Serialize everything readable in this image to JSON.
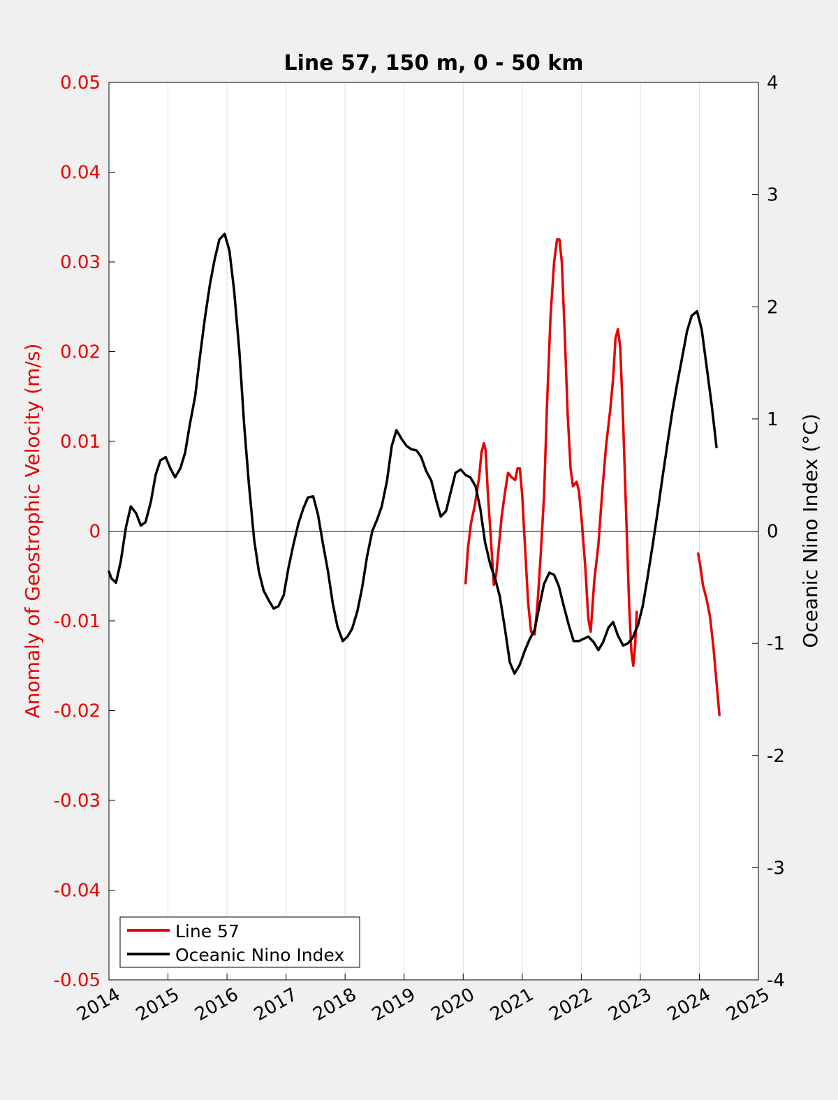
{
  "chart_data": {
    "type": "line",
    "title": "Line 57, 150 m, 0 - 50 km",
    "ylabel_left": "Anomaly of Geostrophic Velocity (m/s)",
    "ylabel_right": "Oceanic Nino Index (°C)",
    "xlim": [
      2014,
      2025
    ],
    "ylim_left": [
      -0.05,
      0.05
    ],
    "ylim_right": [
      -4,
      4
    ],
    "grid_x": true,
    "legend_position": "bottom-left",
    "xticks": [
      "2014",
      "2015",
      "2016",
      "2017",
      "2018",
      "2019",
      "2020",
      "2021",
      "2022",
      "2023",
      "2024",
      "2025"
    ],
    "yticks_left": [
      "0.05",
      "0.04",
      "0.03",
      "0.02",
      "0.01",
      "0",
      "-0.01",
      "-0.02",
      "-0.03",
      "-0.04",
      "-0.05"
    ],
    "yticks_right": [
      "4",
      "3",
      "2",
      "1",
      "0",
      "-1",
      "-2",
      "-3",
      "-4"
    ],
    "colors": {
      "line57": "#e60000",
      "oni": "#000000",
      "left_axis": "#e60000",
      "right_axis": "#000000"
    },
    "series": [
      {
        "name": "Line 57",
        "axis": "left",
        "segments": [
          [
            [
              2020.04,
              -0.0058
            ],
            [
              2020.08,
              -0.002
            ],
            [
              2020.13,
              0.0008
            ],
            [
              2020.2,
              0.003
            ],
            [
              2020.27,
              0.006
            ],
            [
              2020.31,
              0.0088
            ],
            [
              2020.35,
              0.0098
            ],
            [
              2020.38,
              0.009
            ],
            [
              2020.42,
              0.004
            ],
            [
              2020.48,
              -0.002
            ],
            [
              2020.52,
              -0.006
            ],
            [
              2020.56,
              -0.0048
            ],
            [
              2020.6,
              -0.002
            ],
            [
              2020.65,
              0.0015
            ],
            [
              2020.7,
              0.004
            ],
            [
              2020.76,
              0.0065
            ],
            [
              2020.82,
              0.006
            ],
            [
              2020.88,
              0.0057
            ],
            [
              2020.92,
              0.007
            ],
            [
              2020.96,
              0.007
            ],
            [
              2021.0,
              0.004
            ],
            [
              2021.05,
              -0.002
            ],
            [
              2021.1,
              -0.008
            ],
            [
              2021.15,
              -0.0112
            ],
            [
              2021.21,
              -0.0115
            ],
            [
              2021.26,
              -0.008
            ],
            [
              2021.31,
              -0.003
            ],
            [
              2021.37,
              0.004
            ],
            [
              2021.42,
              0.014
            ],
            [
              2021.48,
              0.024
            ],
            [
              2021.54,
              0.03
            ],
            [
              2021.59,
              0.0325
            ],
            [
              2021.63,
              0.0325
            ],
            [
              2021.67,
              0.03
            ],
            [
              2021.72,
              0.022
            ],
            [
              2021.77,
              0.013
            ],
            [
              2021.82,
              0.007
            ],
            [
              2021.86,
              0.005
            ],
            [
              2021.92,
              0.0055
            ],
            [
              2021.96,
              0.0045
            ],
            [
              2022.01,
              0.001
            ],
            [
              2022.07,
              -0.0042
            ],
            [
              2022.12,
              -0.0098
            ],
            [
              2022.16,
              -0.0112
            ],
            [
              2022.22,
              -0.0055
            ],
            [
              2022.29,
              -0.0015
            ],
            [
              2022.35,
              0.004
            ],
            [
              2022.42,
              0.0095
            ],
            [
              2022.49,
              0.0135
            ],
            [
              2022.54,
              0.017
            ],
            [
              2022.58,
              0.0215
            ],
            [
              2022.62,
              0.0225
            ],
            [
              2022.66,
              0.0205
            ],
            [
              2022.71,
              0.012
            ],
            [
              2022.76,
              0.002
            ],
            [
              2022.81,
              -0.008
            ],
            [
              2022.85,
              -0.0135
            ],
            [
              2022.88,
              -0.015
            ],
            [
              2022.91,
              -0.013
            ],
            [
              2022.94,
              -0.009
            ]
          ],
          [
            [
              2023.98,
              -0.0025
            ],
            [
              2024.02,
              -0.004
            ],
            [
              2024.06,
              -0.006
            ],
            [
              2024.12,
              -0.0075
            ],
            [
              2024.18,
              -0.0095
            ],
            [
              2024.24,
              -0.013
            ],
            [
              2024.3,
              -0.0175
            ],
            [
              2024.34,
              -0.0205
            ]
          ]
        ]
      },
      {
        "name": "Oceanic Nino Index",
        "axis": "right",
        "segments": [
          [
            [
              2014.0,
              -0.36
            ],
            [
              2014.04,
              -0.42
            ],
            [
              2014.12,
              -0.46
            ],
            [
              2014.2,
              -0.27
            ],
            [
              2014.29,
              0.04
            ],
            [
              2014.37,
              0.22
            ],
            [
              2014.46,
              0.16
            ],
            [
              2014.54,
              0.05
            ],
            [
              2014.62,
              0.08
            ],
            [
              2014.71,
              0.26
            ],
            [
              2014.79,
              0.5
            ],
            [
              2014.87,
              0.63
            ],
            [
              2014.96,
              0.66
            ],
            [
              2015.04,
              0.56
            ],
            [
              2015.12,
              0.48
            ],
            [
              2015.21,
              0.56
            ],
            [
              2015.29,
              0.7
            ],
            [
              2015.37,
              0.95
            ],
            [
              2015.46,
              1.2
            ],
            [
              2015.54,
              1.55
            ],
            [
              2015.62,
              1.88
            ],
            [
              2015.71,
              2.2
            ],
            [
              2015.79,
              2.42
            ],
            [
              2015.87,
              2.6
            ],
            [
              2015.96,
              2.65
            ],
            [
              2016.04,
              2.5
            ],
            [
              2016.12,
              2.15
            ],
            [
              2016.21,
              1.6
            ],
            [
              2016.29,
              0.95
            ],
            [
              2016.37,
              0.42
            ],
            [
              2016.46,
              -0.08
            ],
            [
              2016.54,
              -0.36
            ],
            [
              2016.62,
              -0.53
            ],
            [
              2016.71,
              -0.62
            ],
            [
              2016.79,
              -0.69
            ],
            [
              2016.87,
              -0.67
            ],
            [
              2016.96,
              -0.57
            ],
            [
              2017.04,
              -0.33
            ],
            [
              2017.12,
              -0.13
            ],
            [
              2017.21,
              0.07
            ],
            [
              2017.29,
              0.2
            ],
            [
              2017.37,
              0.3
            ],
            [
              2017.46,
              0.31
            ],
            [
              2017.54,
              0.15
            ],
            [
              2017.62,
              -0.1
            ],
            [
              2017.71,
              -0.36
            ],
            [
              2017.79,
              -0.64
            ],
            [
              2017.87,
              -0.85
            ],
            [
              2017.96,
              -0.98
            ],
            [
              2018.04,
              -0.94
            ],
            [
              2018.12,
              -0.87
            ],
            [
              2018.21,
              -0.71
            ],
            [
              2018.29,
              -0.5
            ],
            [
              2018.37,
              -0.23
            ],
            [
              2018.46,
              0.0
            ],
            [
              2018.54,
              0.1
            ],
            [
              2018.62,
              0.22
            ],
            [
              2018.71,
              0.45
            ],
            [
              2018.79,
              0.76
            ],
            [
              2018.87,
              0.9
            ],
            [
              2018.96,
              0.82
            ],
            [
              2019.04,
              0.76
            ],
            [
              2019.12,
              0.73
            ],
            [
              2019.21,
              0.72
            ],
            [
              2019.29,
              0.66
            ],
            [
              2019.37,
              0.54
            ],
            [
              2019.46,
              0.45
            ],
            [
              2019.54,
              0.28
            ],
            [
              2019.62,
              0.13
            ],
            [
              2019.71,
              0.18
            ],
            [
              2019.79,
              0.35
            ],
            [
              2019.87,
              0.52
            ],
            [
              2019.96,
              0.55
            ],
            [
              2020.04,
              0.5
            ],
            [
              2020.12,
              0.48
            ],
            [
              2020.21,
              0.4
            ],
            [
              2020.29,
              0.2
            ],
            [
              2020.37,
              -0.1
            ],
            [
              2020.46,
              -0.3
            ],
            [
              2020.54,
              -0.42
            ],
            [
              2020.62,
              -0.58
            ],
            [
              2020.71,
              -0.88
            ],
            [
              2020.79,
              -1.17
            ],
            [
              2020.87,
              -1.27
            ],
            [
              2020.96,
              -1.19
            ],
            [
              2021.04,
              -1.07
            ],
            [
              2021.12,
              -0.97
            ],
            [
              2021.21,
              -0.88
            ],
            [
              2021.29,
              -0.67
            ],
            [
              2021.37,
              -0.47
            ],
            [
              2021.46,
              -0.37
            ],
            [
              2021.54,
              -0.39
            ],
            [
              2021.62,
              -0.49
            ],
            [
              2021.71,
              -0.68
            ],
            [
              2021.79,
              -0.84
            ],
            [
              2021.87,
              -0.98
            ],
            [
              2021.96,
              -0.98
            ],
            [
              2022.04,
              -0.96
            ],
            [
              2022.12,
              -0.94
            ],
            [
              2022.21,
              -0.99
            ],
            [
              2022.29,
              -1.06
            ],
            [
              2022.37,
              -0.99
            ],
            [
              2022.46,
              -0.86
            ],
            [
              2022.54,
              -0.81
            ],
            [
              2022.62,
              -0.93
            ],
            [
              2022.71,
              -1.02
            ],
            [
              2022.79,
              -1.0
            ],
            [
              2022.87,
              -0.95
            ],
            [
              2022.96,
              -0.84
            ],
            [
              2023.04,
              -0.67
            ],
            [
              2023.12,
              -0.42
            ],
            [
              2023.21,
              -0.12
            ],
            [
              2023.29,
              0.16
            ],
            [
              2023.37,
              0.46
            ],
            [
              2023.46,
              0.78
            ],
            [
              2023.54,
              1.06
            ],
            [
              2023.62,
              1.3
            ],
            [
              2023.71,
              1.55
            ],
            [
              2023.79,
              1.78
            ],
            [
              2023.87,
              1.92
            ],
            [
              2023.96,
              1.96
            ],
            [
              2024.04,
              1.8
            ],
            [
              2024.12,
              1.48
            ],
            [
              2024.21,
              1.12
            ],
            [
              2024.29,
              0.75
            ]
          ]
        ]
      }
    ]
  }
}
